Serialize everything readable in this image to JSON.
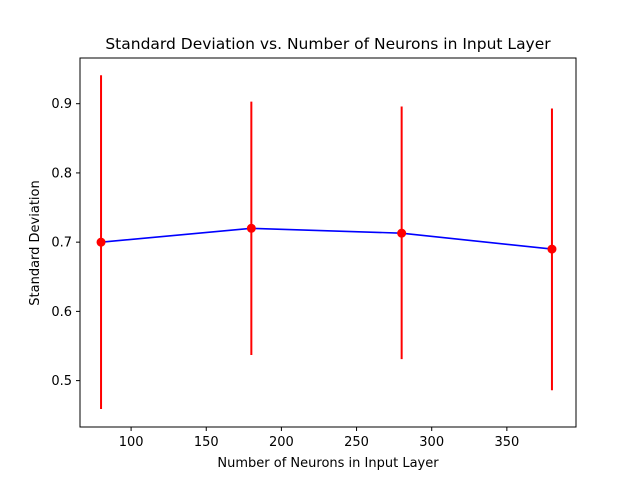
{
  "chart_data": {
    "type": "line",
    "title": "Standard Deviation vs. Number of Neurons in Input Layer",
    "xlabel": "Number of Neurons in Input Layer",
    "ylabel": "Standard Deviation",
    "xlim": [
      66,
      396
    ],
    "ylim": [
      0.433,
      0.966
    ],
    "xticks": [
      100,
      150,
      200,
      250,
      300,
      350
    ],
    "yticks": [
      0.5,
      0.6,
      0.7,
      0.8,
      0.9
    ],
    "grid": false,
    "series": [
      {
        "x": [
          80,
          180,
          280,
          380
        ],
        "y": [
          0.7,
          0.72,
          0.713,
          0.69
        ],
        "error_low": [
          0.459,
          0.537,
          0.531,
          0.486
        ],
        "error_high": [
          0.941,
          0.903,
          0.896,
          0.893
        ],
        "line_color": "#0000ff",
        "marker_color": "#ff0000",
        "errorbar_color": "#ff0000"
      }
    ]
  }
}
